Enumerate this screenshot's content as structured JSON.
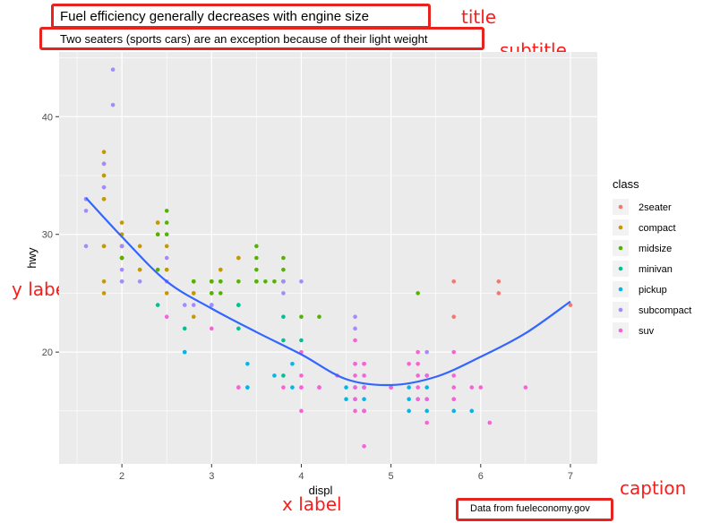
{
  "title": "Fuel efficiency generally decreases with engine size",
  "subtitle": "Two seaters (sports cars) are an exception because of their light weight",
  "caption": "Data from fueleconomy.gov",
  "annotations": {
    "title": "title",
    "subtitle": "subtitle",
    "caption": "caption",
    "ylabel": "y label",
    "xlabel": "x label"
  },
  "colors": {
    "panel": "#ebebeb",
    "grid": "#ffffff",
    "smooth": "#3366ff",
    "annotation": "#ff1a1a",
    "box": "#e8231f"
  },
  "chart_data": {
    "type": "scatter",
    "xlabel": "displ",
    "ylabel": "hwy",
    "xlim": [
      1.3,
      7.3
    ],
    "ylim": [
      10.5,
      45.5
    ],
    "xticks": [
      2,
      3,
      4,
      5,
      6,
      7
    ],
    "yticks": [
      20,
      30,
      40
    ],
    "grid": true,
    "legend_title": "class",
    "legend_position": "right",
    "series": [
      {
        "name": "2seater",
        "color": "#F8766D",
        "points": [
          [
            5.7,
            26
          ],
          [
            5.7,
            23
          ],
          [
            6.2,
            26
          ],
          [
            6.2,
            25
          ],
          [
            7.0,
            24
          ]
        ]
      },
      {
        "name": "compact",
        "color": "#C49A00",
        "points": [
          [
            1.8,
            29
          ],
          [
            1.8,
            29
          ],
          [
            2.0,
            31
          ],
          [
            2.0,
            30
          ],
          [
            2.8,
            26
          ],
          [
            2.8,
            26
          ],
          [
            3.1,
            27
          ],
          [
            1.8,
            26
          ],
          [
            1.8,
            25
          ],
          [
            2.0,
            28
          ],
          [
            2.0,
            29
          ],
          [
            2.8,
            25
          ],
          [
            2.8,
            25
          ],
          [
            2.4,
            31
          ],
          [
            2.4,
            31
          ],
          [
            2.5,
            29
          ],
          [
            2.5,
            27
          ],
          [
            1.8,
            37
          ],
          [
            1.8,
            35
          ],
          [
            2.0,
            29
          ],
          [
            2.2,
            29
          ],
          [
            2.2,
            27
          ],
          [
            2.4,
            30
          ],
          [
            2.5,
            25
          ],
          [
            3.0,
            26
          ],
          [
            3.3,
            28
          ],
          [
            1.8,
            33
          ],
          [
            1.8,
            33
          ],
          [
            2.0,
            28
          ],
          [
            2.2,
            27
          ],
          [
            2.5,
            27
          ],
          [
            1.8,
            36
          ],
          [
            1.8,
            35
          ],
          [
            2.8,
            23
          ],
          [
            3.0,
            26
          ],
          [
            3.1,
            27
          ],
          [
            3.3,
            28
          ]
        ]
      },
      {
        "name": "midsize",
        "color": "#53B400",
        "points": [
          [
            2.4,
            27
          ],
          [
            2.4,
            30
          ],
          [
            2.5,
            32
          ],
          [
            3.1,
            26
          ],
          [
            3.5,
            29
          ],
          [
            3.5,
            28
          ],
          [
            3.8,
            28
          ],
          [
            3.0,
            25
          ],
          [
            3.5,
            26
          ],
          [
            4.2,
            23
          ],
          [
            5.3,
            25
          ],
          [
            2.0,
            28
          ],
          [
            2.0,
            29
          ],
          [
            2.8,
            26
          ],
          [
            3.1,
            25
          ],
          [
            3.6,
            26
          ],
          [
            3.1,
            26
          ],
          [
            3.8,
            27
          ],
          [
            3.8,
            26
          ],
          [
            3.0,
            26
          ],
          [
            3.5,
            27
          ],
          [
            3.3,
            26
          ],
          [
            2.5,
            31
          ],
          [
            3.0,
            25
          ],
          [
            3.5,
            26
          ],
          [
            2.8,
            26
          ],
          [
            2.5,
            30
          ],
          [
            3.0,
            26
          ],
          [
            2.0,
            28
          ],
          [
            3.7,
            26
          ],
          [
            3.8,
            26
          ],
          [
            4.0,
            23
          ]
        ]
      },
      {
        "name": "minivan",
        "color": "#00C094",
        "points": [
          [
            2.4,
            24
          ],
          [
            3.0,
            24
          ],
          [
            3.3,
            22
          ],
          [
            3.3,
            24
          ],
          [
            3.8,
            23
          ],
          [
            3.8,
            21
          ],
          [
            4.0,
            21
          ],
          [
            2.7,
            22
          ],
          [
            3.8,
            18
          ],
          [
            3.3,
            24
          ],
          [
            4.2,
            17
          ]
        ]
      },
      {
        "name": "pickup",
        "color": "#00B6EB",
        "points": [
          [
            2.7,
            20
          ],
          [
            2.7,
            20
          ],
          [
            3.4,
            19
          ],
          [
            3.4,
            17
          ],
          [
            3.7,
            18
          ],
          [
            3.9,
            19
          ],
          [
            4.7,
            17
          ],
          [
            4.7,
            16
          ],
          [
            4.7,
            17
          ],
          [
            5.2,
            16
          ],
          [
            5.2,
            15
          ],
          [
            5.7,
            15
          ],
          [
            5.9,
            15
          ],
          [
            4.5,
            17
          ],
          [
            4.5,
            16
          ],
          [
            5.4,
            15
          ],
          [
            5.4,
            17
          ],
          [
            5.3,
            16
          ],
          [
            4.6,
            16
          ],
          [
            4.6,
            17
          ],
          [
            5.4,
            16
          ],
          [
            5.4,
            18
          ],
          [
            3.9,
            17
          ],
          [
            3.4,
            17
          ],
          [
            5.0,
            17
          ],
          [
            5.2,
            17
          ],
          [
            4.7,
            15
          ]
        ]
      },
      {
        "name": "subcompact",
        "color": "#A58AFF",
        "points": [
          [
            1.6,
            33
          ],
          [
            1.6,
            32
          ],
          [
            1.6,
            29
          ],
          [
            1.8,
            34
          ],
          [
            1.9,
            44
          ],
          [
            1.9,
            41
          ],
          [
            2.0,
            29
          ],
          [
            2.0,
            27
          ],
          [
            2.2,
            26
          ],
          [
            2.5,
            26
          ],
          [
            1.8,
            36
          ],
          [
            2.0,
            26
          ],
          [
            3.8,
            26
          ],
          [
            3.8,
            25
          ],
          [
            4.6,
            23
          ],
          [
            4.6,
            22
          ],
          [
            5.4,
            20
          ],
          [
            2.7,
            24
          ],
          [
            4.0,
            26
          ],
          [
            4.6,
            19
          ],
          [
            1.8,
            34
          ],
          [
            2.0,
            26
          ],
          [
            2.8,
            24
          ],
          [
            1.6,
            33
          ],
          [
            2.5,
            28
          ],
          [
            3.0,
            24
          ]
        ]
      },
      {
        "name": "suv",
        "color": "#FB61D7",
        "points": [
          [
            4.6,
            17
          ],
          [
            4.6,
            15
          ],
          [
            5.3,
            17
          ],
          [
            5.3,
            18
          ],
          [
            5.3,
            20
          ],
          [
            5.7,
            20
          ],
          [
            6.5,
            17
          ],
          [
            4.7,
            12
          ],
          [
            5.7,
            16
          ],
          [
            6.1,
            14
          ],
          [
            5.3,
            16
          ],
          [
            4.0,
            15
          ],
          [
            4.7,
            15
          ],
          [
            4.7,
            19
          ],
          [
            4.0,
            17
          ],
          [
            4.6,
            18
          ],
          [
            5.4,
            18
          ],
          [
            3.8,
            17
          ],
          [
            4.0,
            20
          ],
          [
            4.2,
            17
          ],
          [
            5.7,
            17
          ],
          [
            5.2,
            19
          ],
          [
            5.9,
            17
          ],
          [
            4.7,
            18
          ],
          [
            4.4,
            18
          ],
          [
            2.5,
            23
          ],
          [
            4.2,
            17
          ],
          [
            4.6,
            21
          ],
          [
            5.7,
            18
          ],
          [
            5.0,
            17
          ],
          [
            6.0,
            17
          ],
          [
            4.7,
            19
          ],
          [
            3.0,
            22
          ],
          [
            3.3,
            17
          ],
          [
            4.0,
            18
          ],
          [
            4.6,
            19
          ],
          [
            5.3,
            19
          ],
          [
            5.4,
            16
          ],
          [
            4.0,
            17
          ],
          [
            4.7,
            15
          ],
          [
            5.0,
            17
          ],
          [
            4.6,
            16
          ],
          [
            5.4,
            14
          ],
          [
            4.7,
            17
          ],
          [
            5.7,
            16
          ],
          [
            3.3,
            17
          ],
          [
            4.7,
            15
          ]
        ]
      }
    ],
    "smooth": {
      "color": "#3366ff",
      "x": [
        1.6,
        2.0,
        2.5,
        3.0,
        3.5,
        4.0,
        4.5,
        5.0,
        5.5,
        6.0,
        6.5,
        7.0
      ],
      "y": [
        33.1,
        29.8,
        26.0,
        23.7,
        21.7,
        19.8,
        17.7,
        17.2,
        17.9,
        19.6,
        21.6,
        24.3
      ]
    }
  }
}
